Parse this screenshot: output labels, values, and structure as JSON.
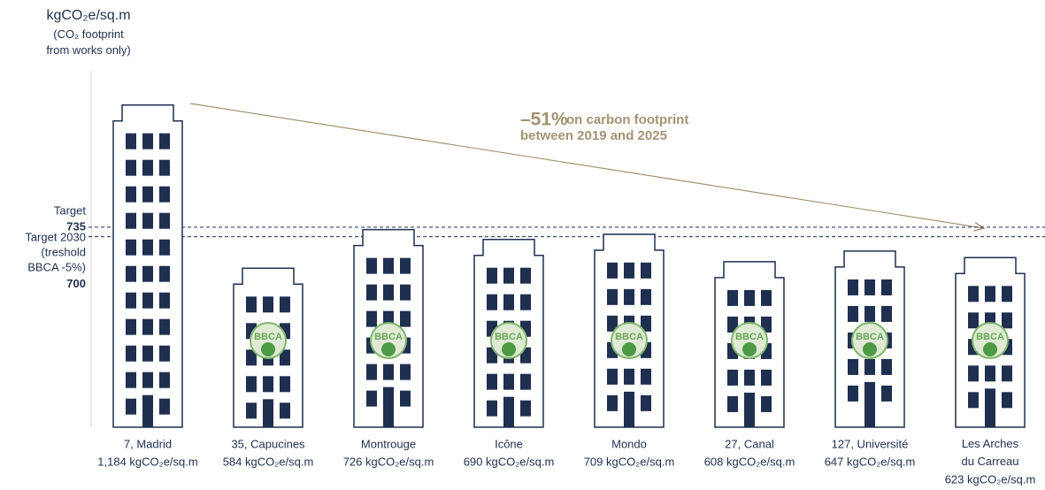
{
  "chart_data": {
    "type": "building-bar",
    "y_label": "kgCO₂e/sq.m",
    "y_sublabel": "(CO₂ footprint\nfrom works only)",
    "categories": [
      "7, Madrid",
      "35, Capucines",
      "Montrouge",
      "Icône",
      "Mondo",
      "27, Canal",
      "127, Université",
      "Les Arches\ndu Carreau"
    ],
    "values": [
      1184,
      584,
      726,
      690,
      709,
      608,
      647,
      623
    ],
    "value_labels": [
      "1,184 kgCO₂e/sq.m",
      "584 kgCO₂e/sq.m",
      "726 kgCO₂e/sq.m",
      "690 kgCO₂e/sq.m",
      "709 kgCO₂e/sq.m",
      "608 kgCO₂e/sq.m",
      "647 kgCO₂e/sq.m",
      "623 kgCO₂e/sq.m"
    ],
    "badges": [
      false,
      true,
      true,
      true,
      true,
      true,
      true,
      true
    ],
    "badge_text": "BBCA",
    "color": "#1f2f4f",
    "ylim": [
      0,
      1300
    ],
    "reference_lines": [
      {
        "value": 735,
        "label": "Target"
      },
      {
        "value": 700,
        "label": "Target 2030\n(treshold\nBBCA -5%)"
      }
    ],
    "annotation": {
      "highlight": "–51%",
      "text": "on carbon footprint\nbetween 2019 and 2025",
      "color": "#a39472"
    }
  }
}
